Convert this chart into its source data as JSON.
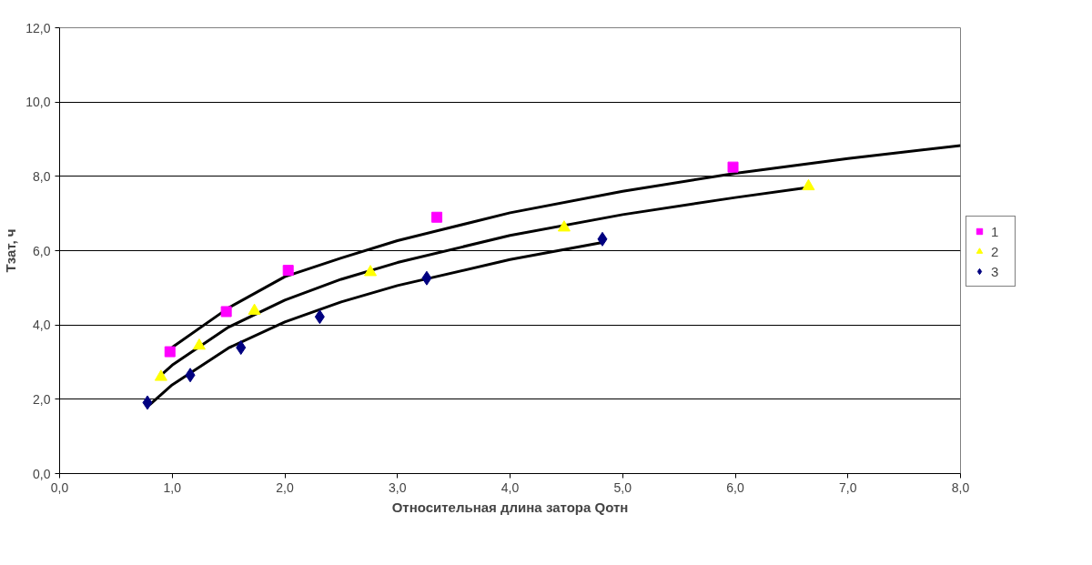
{
  "chart_data": {
    "type": "scatter",
    "xlabel": "Относительная длина затора Qотн",
    "ylabel": "Тзат, ч",
    "xlim": [
      0,
      8
    ],
    "ylim": [
      0,
      12
    ],
    "xticks": [
      {
        "value": 0,
        "label": "0,0"
      },
      {
        "value": 1,
        "label": "1,0"
      },
      {
        "value": 2,
        "label": "2,0"
      },
      {
        "value": 3,
        "label": "3,0"
      },
      {
        "value": 4,
        "label": "4,0"
      },
      {
        "value": 5,
        "label": "5,0"
      },
      {
        "value": 6,
        "label": "6,0"
      },
      {
        "value": 7,
        "label": "7,0"
      },
      {
        "value": 8,
        "label": "8,0"
      }
    ],
    "yticks": [
      {
        "value": 0,
        "label": "0,0"
      },
      {
        "value": 2,
        "label": "2,0"
      },
      {
        "value": 4,
        "label": "4,0"
      },
      {
        "value": 6,
        "label": "6,0"
      },
      {
        "value": 8,
        "label": "8,0"
      },
      {
        "value": 10,
        "label": "10,0"
      },
      {
        "value": 12,
        "label": "12,0"
      }
    ],
    "grid": "y",
    "legend": "right",
    "series": [
      {
        "name": "1",
        "marker": "square",
        "color": "#ff00ff",
        "x": [
          0.98,
          1.48,
          2.03,
          3.35,
          5.98
        ],
        "values": [
          3.28,
          4.36,
          5.47,
          6.9,
          8.25
        ]
      },
      {
        "name": "2",
        "marker": "triangle",
        "color": "#ffff00",
        "x": [
          0.9,
          1.24,
          1.73,
          2.76,
          4.48,
          6.65
        ],
        "values": [
          2.6,
          3.44,
          4.38,
          5.42,
          6.62,
          7.73
        ]
      },
      {
        "name": "3",
        "marker": "diamond",
        "color": "#000080",
        "x": [
          0.78,
          1.16,
          1.61,
          2.31,
          3.26,
          4.82
        ],
        "values": [
          1.91,
          2.65,
          3.39,
          4.22,
          5.26,
          6.31
        ]
      },
      {
        "type": "line",
        "color": "#000000",
        "x": [
          1.0,
          1.5,
          2,
          2.5,
          3,
          4,
          5,
          6,
          7,
          8
        ],
        "values": [
          3.4,
          4.46,
          5.3,
          5.8,
          6.27,
          7.02,
          7.6,
          8.08,
          8.48,
          8.83
        ]
      },
      {
        "type": "line",
        "color": "#000000",
        "x": [
          0.9,
          1.0,
          1.5,
          2,
          2.5,
          3,
          4,
          5,
          6,
          6.65
        ],
        "values": [
          2.65,
          2.92,
          3.94,
          4.67,
          5.23,
          5.68,
          6.41,
          6.97,
          7.43,
          7.7
        ]
      },
      {
        "type": "line",
        "color": "#000000",
        "x": [
          0.8,
          1.0,
          1.5,
          2,
          2.5,
          3,
          4,
          4.82
        ],
        "values": [
          1.85,
          2.39,
          3.38,
          4.08,
          4.62,
          5.06,
          5.76,
          6.22
        ]
      }
    ]
  }
}
